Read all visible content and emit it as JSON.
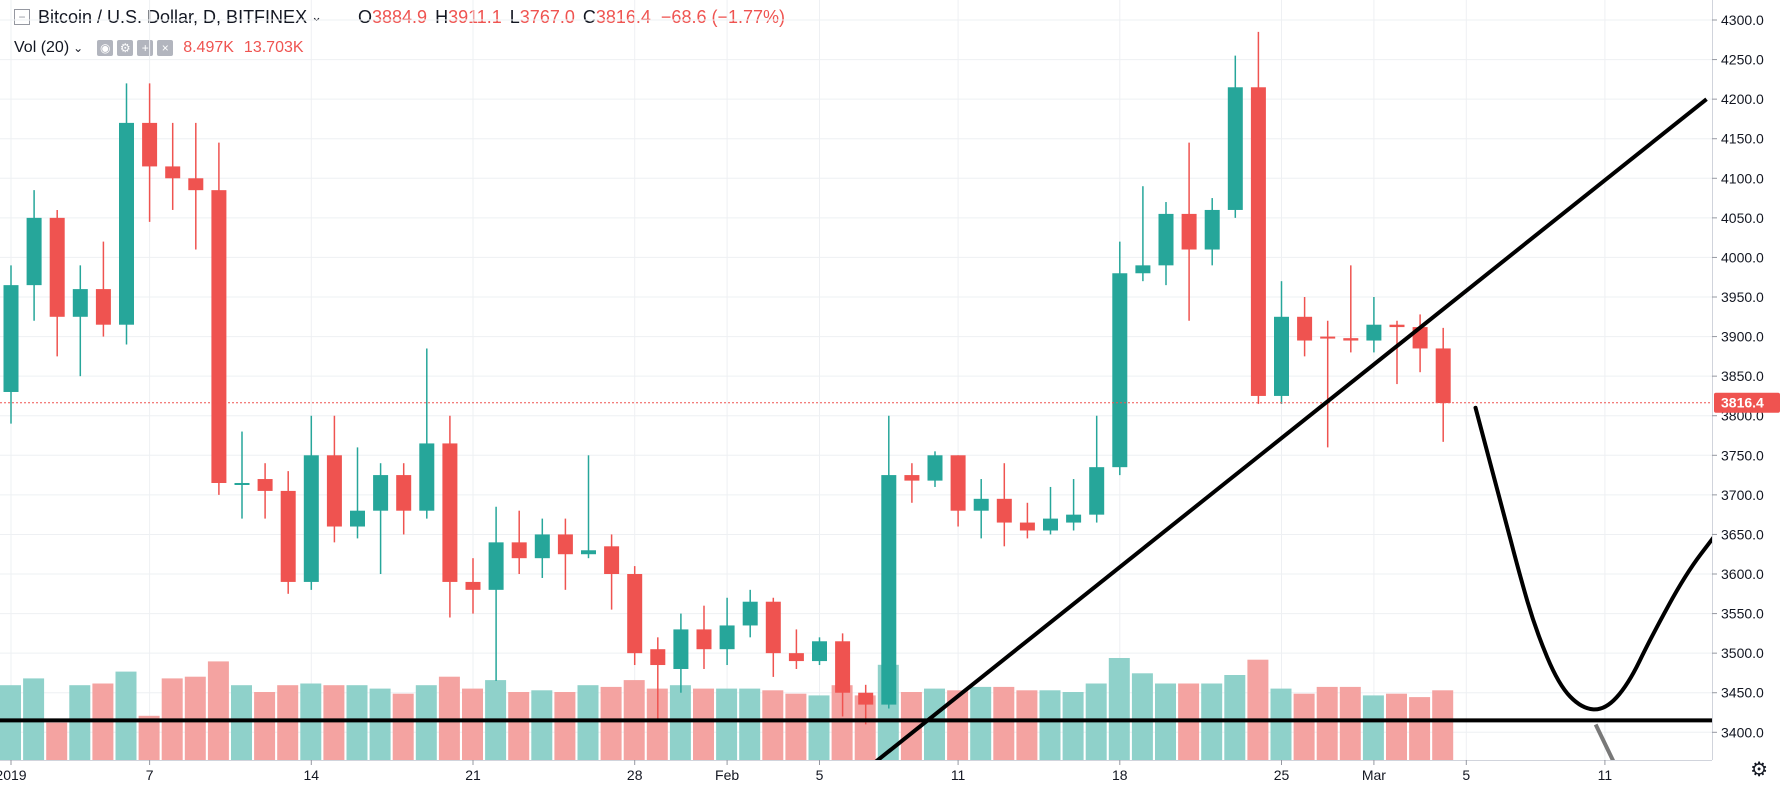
{
  "header": {
    "symbol": "Bitcoin / U.S. Dollar, D, BITFINEX",
    "open_label": "O",
    "open": "3884.9",
    "high_label": "H",
    "high": "3911.1",
    "low_label": "L",
    "low": "3767.0",
    "close_label": "C",
    "close": "3816.4",
    "change": "−68.6 (−1.77%)"
  },
  "volume_indicator": {
    "name": "Vol (20)",
    "value_1": "8.497K",
    "value_2": "13.703K"
  },
  "icons": [
    "collapse-icon",
    "chevron-down-icon",
    "eye-icon",
    "settings-icon",
    "plus-icon",
    "close-icon",
    "gear-icon"
  ],
  "colors": {
    "up": "#26a69a",
    "down": "#ef5350",
    "vol_up": "#8fd1ca",
    "vol_down": "#f4a3a1",
    "last_price": "#ef5350",
    "drawing": "#000000"
  },
  "chart_data": {
    "type": "candlestick",
    "ylim": [
      3365,
      4325
    ],
    "y_ticks": [
      3400,
      3450,
      3500,
      3550,
      3600,
      3650,
      3700,
      3750,
      3800,
      3850,
      3900,
      3950,
      4000,
      4050,
      4100,
      4150,
      4200,
      4250,
      4300
    ],
    "x_tick_labels": [
      {
        "label": "2019",
        "index": 0
      },
      {
        "label": "7",
        "index": 6
      },
      {
        "label": "14",
        "index": 13
      },
      {
        "label": "21",
        "index": 20
      },
      {
        "label": "28",
        "index": 27
      },
      {
        "label": "Feb",
        "index": 31
      },
      {
        "label": "5",
        "index": 35
      },
      {
        "label": "11",
        "index": 41
      },
      {
        "label": "18",
        "index": 48
      },
      {
        "label": "25",
        "index": 55
      },
      {
        "label": "Mar",
        "index": 59
      },
      {
        "label": "5",
        "index": 63
      },
      {
        "label": "11",
        "index": 69
      }
    ],
    "last_price": "3816.4",
    "grid": true,
    "candles": [
      [
        3830,
        3990,
        3790,
        3965
      ],
      [
        3965,
        4085,
        3920,
        4050
      ],
      [
        4050,
        4060,
        3875,
        3925
      ],
      [
        3925,
        3990,
        3850,
        3960
      ],
      [
        3960,
        4020,
        3900,
        3915
      ],
      [
        3915,
        4220,
        3890,
        4170
      ],
      [
        4170,
        4220,
        4045,
        4115
      ],
      [
        4115,
        4170,
        4060,
        4100
      ],
      [
        4100,
        4170,
        4010,
        4085
      ],
      [
        4085,
        4145,
        3700,
        3715
      ],
      [
        3715,
        3780,
        3670,
        3715
      ],
      [
        3720,
        3740,
        3670,
        3705
      ],
      [
        3705,
        3730,
        3575,
        3590
      ],
      [
        3590,
        3800,
        3580,
        3750
      ],
      [
        3750,
        3800,
        3640,
        3660
      ],
      [
        3660,
        3760,
        3645,
        3680
      ],
      [
        3680,
        3740,
        3600,
        3725
      ],
      [
        3725,
        3740,
        3650,
        3680
      ],
      [
        3680,
        3885,
        3670,
        3765
      ],
      [
        3765,
        3800,
        3545,
        3590
      ],
      [
        3590,
        3620,
        3550,
        3580
      ],
      [
        3580,
        3685,
        3465,
        3640
      ],
      [
        3640,
        3680,
        3600,
        3620
      ],
      [
        3620,
        3670,
        3595,
        3650
      ],
      [
        3650,
        3670,
        3580,
        3625
      ],
      [
        3625,
        3750,
        3620,
        3630
      ],
      [
        3635,
        3650,
        3555,
        3600
      ],
      [
        3600,
        3610,
        3485,
        3500
      ],
      [
        3505,
        3520,
        3415,
        3485
      ],
      [
        3480,
        3550,
        3450,
        3530
      ],
      [
        3530,
        3560,
        3480,
        3505
      ],
      [
        3505,
        3570,
        3485,
        3535
      ],
      [
        3535,
        3580,
        3520,
        3565
      ],
      [
        3565,
        3570,
        3470,
        3500
      ],
      [
        3500,
        3530,
        3480,
        3490
      ],
      [
        3490,
        3520,
        3485,
        3515
      ],
      [
        3515,
        3525,
        3420,
        3450
      ],
      [
        3450,
        3460,
        3410,
        3435
      ],
      [
        3435,
        3800,
        3430,
        3725
      ],
      [
        3725,
        3740,
        3690,
        3718
      ],
      [
        3718,
        3755,
        3710,
        3750
      ],
      [
        3750,
        3750,
        3660,
        3680
      ],
      [
        3680,
        3720,
        3645,
        3695
      ],
      [
        3695,
        3740,
        3635,
        3665
      ],
      [
        3665,
        3690,
        3645,
        3655
      ],
      [
        3655,
        3710,
        3650,
        3670
      ],
      [
        3665,
        3720,
        3655,
        3675
      ],
      [
        3675,
        3800,
        3665,
        3735
      ],
      [
        3735,
        4020,
        3725,
        3980
      ],
      [
        3980,
        4090,
        3970,
        3990
      ],
      [
        3990,
        4070,
        3965,
        4055
      ],
      [
        4055,
        4145,
        3920,
        4010
      ],
      [
        4010,
        4075,
        3990,
        4060
      ],
      [
        4060,
        4255,
        4050,
        4215
      ],
      [
        4215,
        4285,
        3815,
        3825
      ],
      [
        3825,
        3970,
        3815,
        3925
      ],
      [
        3925,
        3950,
        3875,
        3895
      ],
      [
        3900,
        3920,
        3760,
        3898
      ],
      [
        3898,
        3990,
        3880,
        3895
      ],
      [
        3895,
        3950,
        3880,
        3915
      ],
      [
        3915,
        3920,
        3840,
        3912
      ],
      [
        3912,
        3928,
        3855,
        3885
      ],
      [
        3885,
        3911,
        3767,
        3816
      ]
    ],
    "volume_ratios": [
      0.44,
      0.48,
      0.22,
      0.44,
      0.45,
      0.52,
      0.26,
      0.48,
      0.49,
      0.58,
      0.44,
      0.4,
      0.44,
      0.45,
      0.44,
      0.44,
      0.42,
      0.39,
      0.44,
      0.49,
      0.42,
      0.47,
      0.4,
      0.41,
      0.4,
      0.44,
      0.43,
      0.47,
      0.42,
      0.44,
      0.42,
      0.42,
      0.42,
      0.41,
      0.39,
      0.38,
      0.44,
      0.38,
      0.56,
      0.4,
      0.42,
      0.41,
      0.43,
      0.43,
      0.41,
      0.41,
      0.4,
      0.45,
      0.6,
      0.51,
      0.45,
      0.45,
      0.45,
      0.5,
      0.59,
      0.42,
      0.39,
      0.43,
      0.43,
      0.38,
      0.39,
      0.37,
      0.41
    ],
    "drawings": [
      {
        "type": "trend-line",
        "from": [
          35.9,
          3365
        ],
        "to": [
          73.4,
          4200
        ]
      },
      {
        "type": "horizontal-line",
        "price": 3415
      },
      {
        "type": "projection-curve",
        "points": [
          [
            63.4,
            3810
          ],
          [
            64.5,
            3690
          ],
          [
            65.3,
            3600
          ],
          [
            66.0,
            3530
          ],
          [
            67.0,
            3460
          ],
          [
            68.0,
            3430
          ],
          [
            69.0,
            3428
          ],
          [
            70.0,
            3460
          ],
          [
            71.0,
            3520
          ],
          [
            72.5,
            3600
          ],
          [
            73.8,
            3650
          ]
        ]
      },
      {
        "type": "grey-arrow",
        "from": [
          68.6,
          3420
        ],
        "to": [
          69.8,
          3365
        ]
      }
    ]
  }
}
